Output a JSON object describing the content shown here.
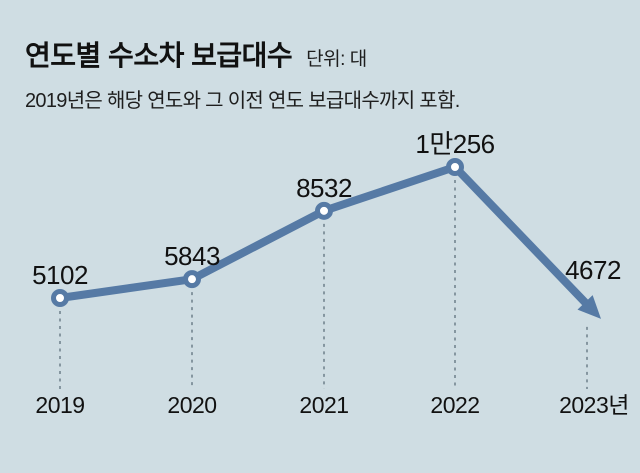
{
  "header": {
    "title": "연도별 수소차 보급대수",
    "unit_label": "단위: 대",
    "subtitle": "2019년은 해당 연도와 그 이전 연도 보급대수까지 포함."
  },
  "chart_data": {
    "type": "line",
    "title": "연도별 수소차 보급대수",
    "unit": "대",
    "categories": [
      "2019",
      "2020",
      "2021",
      "2022",
      "2023년"
    ],
    "values": [
      5102,
      5843,
      8532,
      10256,
      4672
    ],
    "value_labels": [
      "5102",
      "5843",
      "8532",
      "1만256",
      "4672"
    ],
    "ylim": [
      4000,
      11000
    ],
    "grid": false,
    "legend_position": "none",
    "annotations": "last point drawn as downward arrow instead of marker; dashed guides drop from each point to year labels",
    "colors": {
      "background": "#cfdde3",
      "line": "#567aa5",
      "marker_fill": "#ffffff",
      "label_text": "#111111",
      "dashed_guide": "#6d7e89"
    }
  }
}
